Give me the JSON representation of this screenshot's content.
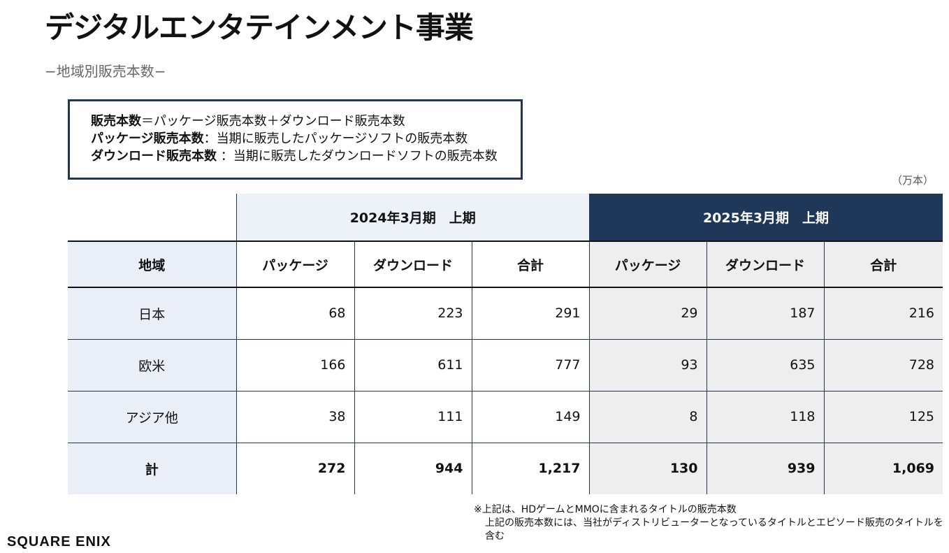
{
  "header": {
    "title": "デジタルエンタテインメント事業",
    "subtitle": "−地域別販売本数−"
  },
  "definitions": [
    {
      "term": "販売本数",
      "sep": "＝",
      "desc": "パッケージ販売本数＋ダウンロード販売本数"
    },
    {
      "term": "パッケージ販売本数",
      "sep": "：",
      "desc": "当期に販売したパッケージソフトの販売本数"
    },
    {
      "term": "ダウンロード販売本数",
      "sep": " ：",
      "desc": "当期に販売したダウンロードソフトの販売本数"
    }
  ],
  "unit": "（万本）",
  "table": {
    "period_a": "2024年3月期　上期",
    "period_b": "2025年3月期　上期",
    "region_header": "地域",
    "col_headers": [
      "パッケージ",
      "ダウンロード",
      "合計",
      "パッケージ",
      "ダウンロード",
      "合計"
    ],
    "rows": [
      {
        "region": "日本",
        "values": [
          "68",
          "223",
          "291",
          "29",
          "187",
          "216"
        ]
      },
      {
        "region": "欧米",
        "values": [
          "166",
          "611",
          "777",
          "93",
          "635",
          "728"
        ]
      },
      {
        "region": "アジア他",
        "values": [
          "38",
          "111",
          "149",
          "8",
          "118",
          "125"
        ]
      },
      {
        "region": "計",
        "values": [
          "272",
          "944",
          "1,217",
          "130",
          "939",
          "1,069"
        ]
      }
    ]
  },
  "notes": [
    "※上記は、HDゲームとMMOに含まれるタイトルの販売本数",
    "上記の販売本数には、当社がディストリビューターとなっているタイトルとエピソード販売のタイトルを含む"
  ],
  "logo": "SQUARE ENIX"
}
